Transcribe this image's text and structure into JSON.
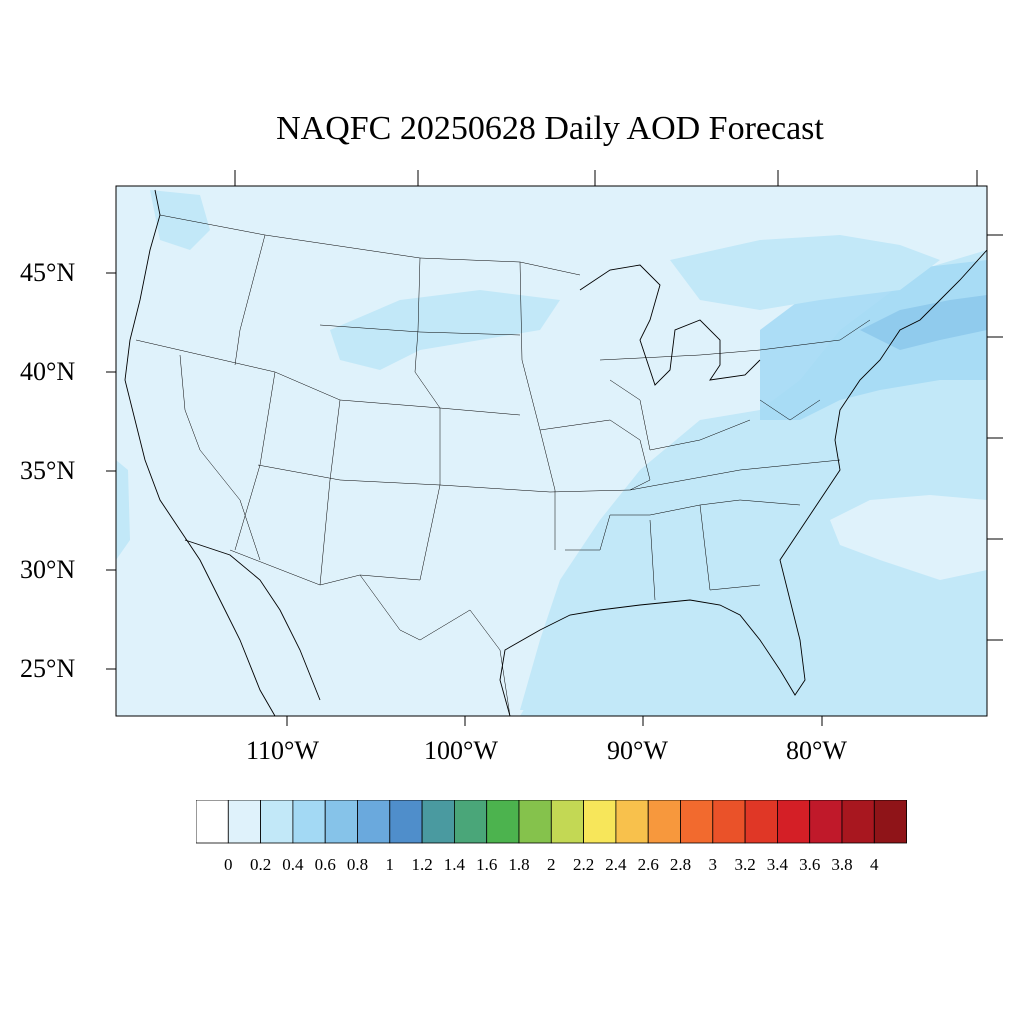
{
  "title": "NAQFC 20250628 Daily AOD Forecast",
  "map": {
    "lat_labels": [
      "45°N",
      "40°N",
      "35°N",
      "30°N",
      "25°N"
    ],
    "lon_labels": [
      "110°W",
      "100°W",
      "90°W",
      "80°W"
    ]
  },
  "colorbar": {
    "labels": [
      "0",
      "0.2",
      "0.4",
      "0.6",
      "0.8",
      "1",
      "1.2",
      "1.4",
      "1.6",
      "1.8",
      "2",
      "2.2",
      "2.4",
      "2.6",
      "2.8",
      "3",
      "3.2",
      "3.4",
      "3.6",
      "3.8",
      "4"
    ],
    "colors": [
      "#ffffff",
      "#dff2fb",
      "#c2e8f8",
      "#a3d9f4",
      "#86c3e9",
      "#6aa9dd",
      "#4f8ecb",
      "#4a9aa0",
      "#4aa679",
      "#4cb34e",
      "#85c24c",
      "#c3d854",
      "#f7e65a",
      "#f8c14c",
      "#f7983d",
      "#f26a2e",
      "#ea5229",
      "#e03726",
      "#d41f26",
      "#c0192a",
      "#a8171f",
      "#8f1418"
    ]
  }
}
